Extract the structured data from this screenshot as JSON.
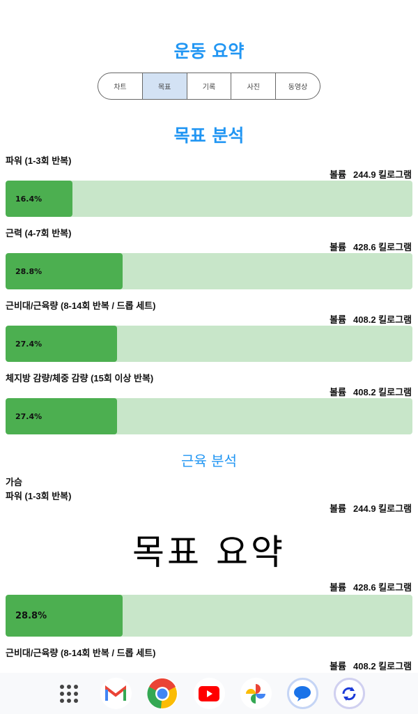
{
  "header": {
    "title": "운동 요약"
  },
  "tabs": [
    {
      "label": "차트"
    },
    {
      "label": "목표",
      "selected": true
    },
    {
      "label": "기록"
    },
    {
      "label": "사진"
    },
    {
      "label": "동영상"
    }
  ],
  "goal_analysis": {
    "title": "목표 분석",
    "rows": [
      {
        "label": "파워 (1-3회 반복)",
        "volume_label": "볼륨",
        "volume": "244.9 킬로그램",
        "percent": "16.4%",
        "fraction": 0.164
      },
      {
        "label": "근력 (4-7회 반복)",
        "volume_label": "볼륨",
        "volume": "428.6 킬로그램",
        "percent": "28.8%",
        "fraction": 0.288
      },
      {
        "label": "근비대/근육량 (8-14회 반복 / 드롭 세트)",
        "volume_label": "볼륨",
        "volume": "408.2 킬로그램",
        "percent": "27.4%",
        "fraction": 0.274
      },
      {
        "label": "체지방 감량/체중 감량 (15회 이상 반복)",
        "volume_label": "볼륨",
        "volume": "408.2 킬로그램",
        "percent": "27.4%",
        "fraction": 0.274
      }
    ]
  },
  "muscle_analysis": {
    "title": "근육 분석",
    "group": "가슴",
    "row1": {
      "label": "파워 (1-3회 반복)",
      "volume_label": "볼륨",
      "volume": "244.9 킬로그램"
    },
    "row2": {
      "volume_label": "볼륨",
      "volume": "428.6 킬로그램",
      "percent": "28.8%",
      "fraction": 0.288
    },
    "row3": {
      "label": "근비대/근육량 (8-14회 반복 / 드롭 세트)",
      "volume_label": "볼륨",
      "volume": "408.2 킬로그램"
    }
  },
  "overlay": {
    "text": "목표 요약"
  },
  "dock": {
    "apps": [
      "app-drawer",
      "gmail",
      "chrome",
      "youtube",
      "photos",
      "messages",
      "sync"
    ]
  },
  "colors": {
    "accent": "#2196f3",
    "bar_fill": "#4caf50",
    "bar_track": "#c8e6c9",
    "tab_selected": "#d3e2f4"
  }
}
